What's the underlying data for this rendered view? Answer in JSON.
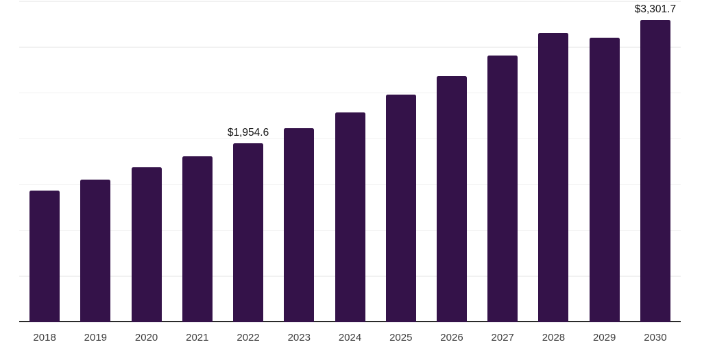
{
  "chart_data": {
    "type": "bar",
    "title": "",
    "xlabel": "",
    "ylabel": "",
    "categories": [
      "2018",
      "2019",
      "2020",
      "2021",
      "2022",
      "2023",
      "2024",
      "2025",
      "2026",
      "2027",
      "2028",
      "2029",
      "2030"
    ],
    "values": [
      1438.3,
      1557.9,
      1688.0,
      1812.3,
      1954.6,
      2118.8,
      2286.0,
      2480.4,
      2684.8,
      2909.2,
      3155.9,
      3103.6,
      3301.7
    ],
    "bar_labels": {
      "2022": "$1,954.6",
      "2030": "$3,301.7"
    },
    "ylim": [
      0,
      3500
    ],
    "gridline_step": 500,
    "grid": "horizontal-only",
    "y_axis_tick_labels_visible": false,
    "legend": "none",
    "colors": {
      "bar": "#341249",
      "gridline": "#f1f1f1",
      "axis_line": "#2a2a2a",
      "x_tick_label": "#3d3d3d",
      "value_label": "#111111",
      "background": "#ffffff"
    }
  }
}
